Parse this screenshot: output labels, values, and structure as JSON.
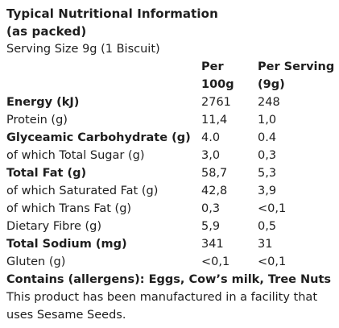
{
  "label": {
    "title_line1": "Typical Nutritional Information",
    "title_line2": "(as packed)",
    "serving_size": "Serving Size 9g (1 Biscuit)",
    "columns": {
      "per_100g_line1": "Per",
      "per_100g_line2": "100g",
      "per_serving_line1": "Per Serving",
      "per_serving_line2": "(9g)"
    },
    "rows": [
      {
        "name": "Energy (kJ)",
        "per_100g": "2761",
        "per_serving": "248"
      },
      {
        "name": "Protein (g)",
        "per_100g": "11,4",
        "per_serving": "1,0"
      },
      {
        "name": "Glyceamic Carbohydrate (g)",
        "per_100g": "4.0",
        "per_serving": "0.4"
      },
      {
        "name": "of which Total Sugar (g)",
        "per_100g": "3,0",
        "per_serving": "0,3"
      },
      {
        "name": "Total Fat (g)",
        "per_100g": "58,7",
        "per_serving": "5,3"
      },
      {
        "name": "of which Saturated Fat (g)",
        "per_100g": "42,8",
        "per_serving": "3,9"
      },
      {
        "name": "of which Trans Fat (g)",
        "per_100g": "0,3",
        "per_serving": "<0,1"
      },
      {
        "name": "Dietary Fibre (g)",
        "per_100g": "5,9",
        "per_serving": "0,5"
      },
      {
        "name": "Total Sodium (mg)",
        "per_100g": "341",
        "per_serving": "31"
      },
      {
        "name": "Gluten (g)",
        "per_100g": "<0,1",
        "per_serving": "<0,1"
      }
    ],
    "allergens": "Contains (allergens): Eggs, Cow’s milk, Tree Nuts",
    "facility_note": "This product has been manufactured in a facility that uses Sesame Seeds."
  }
}
